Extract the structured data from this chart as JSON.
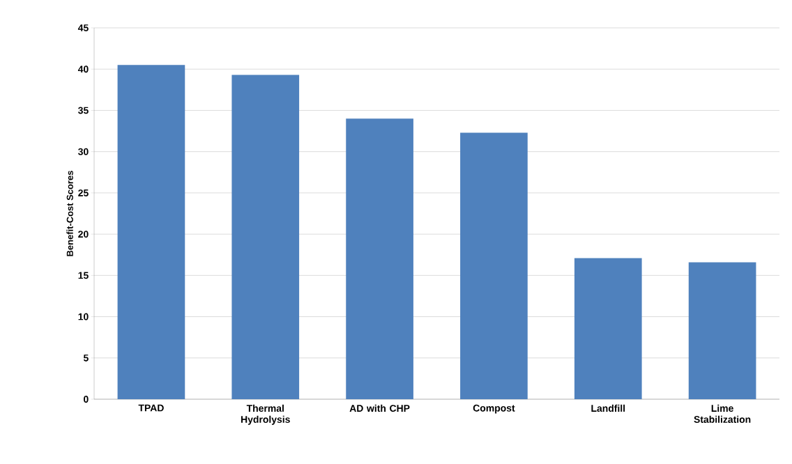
{
  "chart_data": {
    "type": "bar",
    "ylabel": "Benefit-Cost Scores",
    "categories": [
      "TPAD",
      "Thermal Hydrolysis",
      "AD with CHP",
      "Compost",
      "Landfill",
      "Lime Stabilization"
    ],
    "values": [
      40.5,
      39.3,
      34.0,
      32.3,
      17.1,
      16.6
    ],
    "color": "#4f81bd",
    "ylim": [
      0,
      45
    ],
    "yticks": [
      0,
      5,
      10,
      15,
      20,
      25,
      30,
      35,
      40,
      45
    ],
    "grid": "y"
  }
}
